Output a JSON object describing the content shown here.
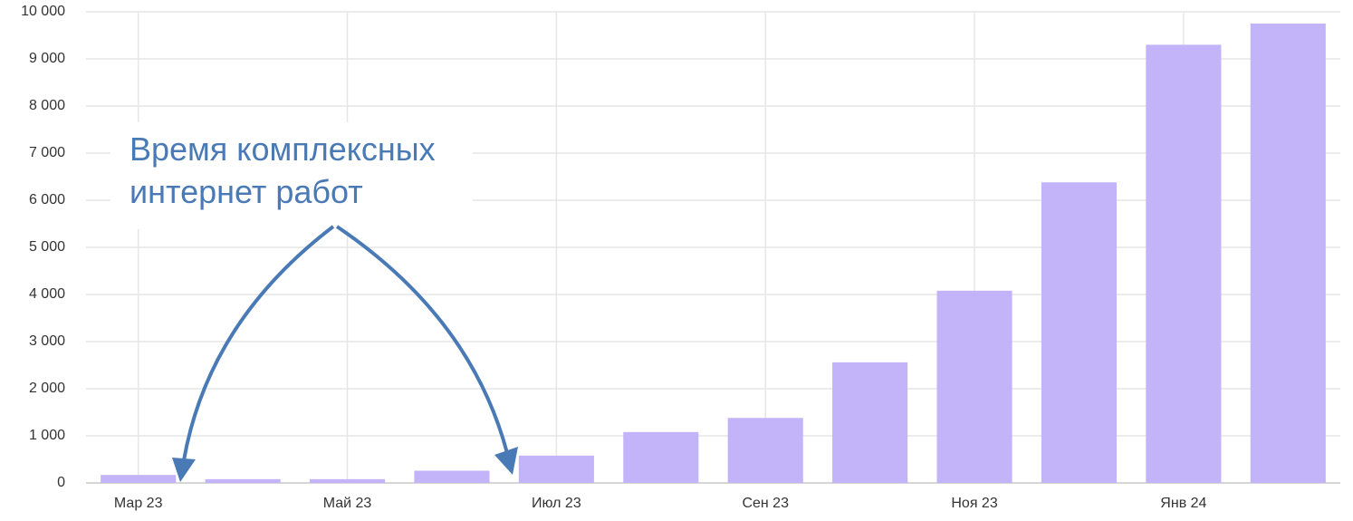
{
  "chart_data": {
    "type": "bar",
    "categories": [
      "Мар 23",
      null,
      "Май 23",
      null,
      "Июл 23",
      null,
      "Сен 23",
      null,
      "Ноя 23",
      null,
      "Янв 24",
      null
    ],
    "values": [
      170,
      80,
      80,
      260,
      580,
      1080,
      1380,
      2560,
      4080,
      6380,
      9300,
      9750
    ],
    "color": "#c3b3f8",
    "ylim": [
      0,
      10000
    ],
    "yticks": [
      0,
      {
        "value": 1000,
        "label": "1 000"
      },
      {
        "value": 2000,
        "label": "2 000"
      },
      {
        "value": 3000,
        "label": "3 000"
      },
      {
        "value": 4000,
        "label": "4 000"
      },
      {
        "value": 5000,
        "label": "5 000"
      },
      {
        "value": 6000,
        "label": "6 000"
      },
      {
        "value": 7000,
        "label": "7 000"
      },
      {
        "value": 8000,
        "label": "8 000"
      },
      {
        "value": 9000,
        "label": "9 000"
      },
      {
        "value": 10000,
        "label": "10 000"
      }
    ],
    "grid": true,
    "annotation": [
      "Время комплексных",
      "интернет работ"
    ]
  }
}
